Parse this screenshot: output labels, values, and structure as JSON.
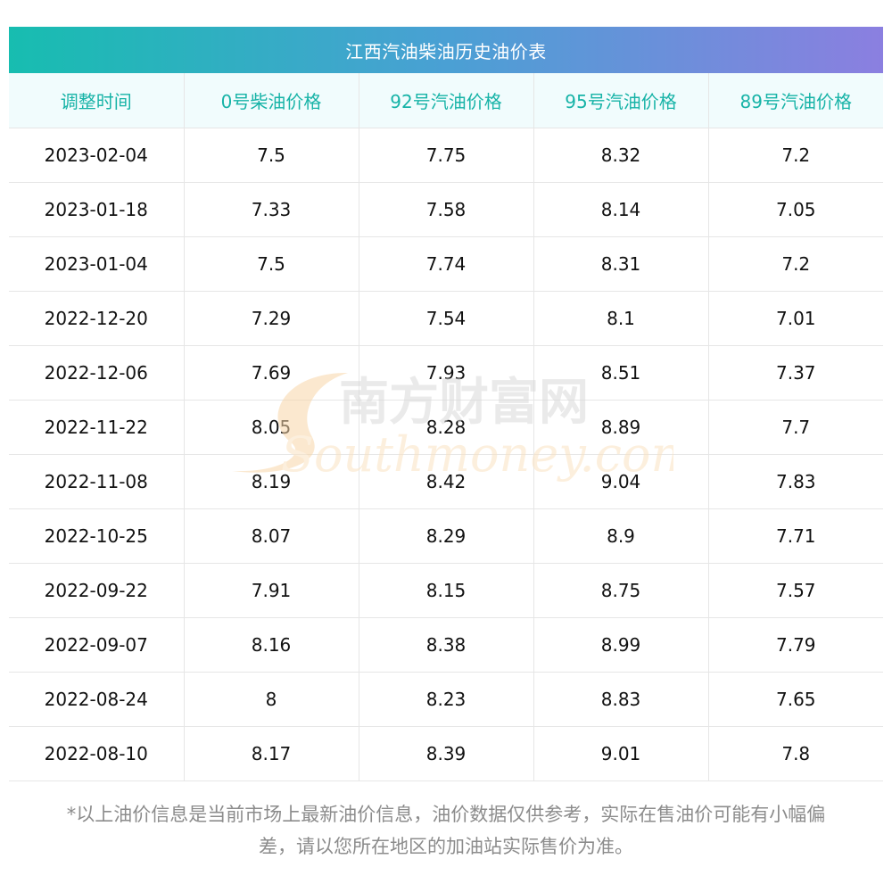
{
  "table": {
    "title": "江西汽油柴油历史油价表",
    "headers": [
      "调整时间",
      "0号柴油价格",
      "92号汽油价格",
      "95号汽油价格",
      "89号汽油价格"
    ],
    "rows": [
      [
        "2023-02-04",
        "7.5",
        "7.75",
        "8.32",
        "7.2"
      ],
      [
        "2023-01-18",
        "7.33",
        "7.58",
        "8.14",
        "7.05"
      ],
      [
        "2023-01-04",
        "7.5",
        "7.74",
        "8.31",
        "7.2"
      ],
      [
        "2022-12-20",
        "7.29",
        "7.54",
        "8.1",
        "7.01"
      ],
      [
        "2022-12-06",
        "7.69",
        "7.93",
        "8.51",
        "7.37"
      ],
      [
        "2022-11-22",
        "8.05",
        "8.28",
        "8.89",
        "7.7"
      ],
      [
        "2022-11-08",
        "8.19",
        "8.42",
        "9.04",
        "7.83"
      ],
      [
        "2022-10-25",
        "8.07",
        "8.29",
        "8.9",
        "7.71"
      ],
      [
        "2022-09-22",
        "7.91",
        "8.15",
        "8.75",
        "7.57"
      ],
      [
        "2022-09-07",
        "8.16",
        "8.38",
        "8.99",
        "7.79"
      ],
      [
        "2022-08-24",
        "8",
        "8.23",
        "8.83",
        "7.65"
      ],
      [
        "2022-08-10",
        "8.17",
        "8.39",
        "9.01",
        "7.8"
      ]
    ]
  },
  "watermark": {
    "cn": "南方财富网",
    "en": "Southmoney.com"
  },
  "footnote": {
    "line1": "*以上油价信息是当前市场上最新油价信息，油价数据仅供参考，实际在售油价可能有小幅偏",
    "line2": "差，请以您所在地区的加油站实际售价为准。"
  },
  "colors": {
    "title_gradient_start": "#17bdb0",
    "title_gradient_end": "#8b7fe0",
    "header_text": "#17b3a7",
    "header_bg": "#f1fcfd",
    "footnote_text": "#8c8c8c"
  }
}
